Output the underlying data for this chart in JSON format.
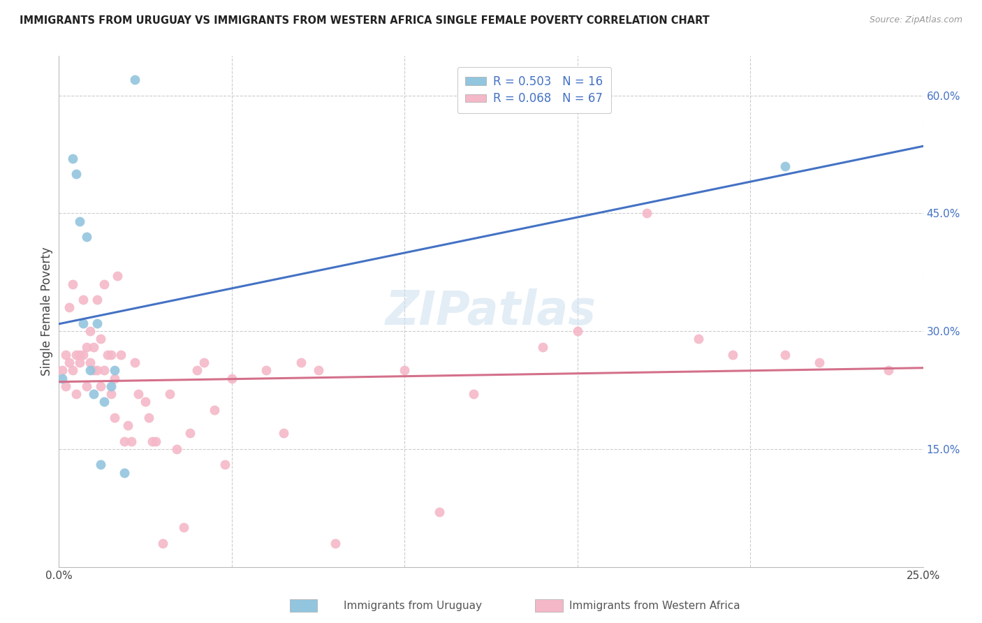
{
  "title": "IMMIGRANTS FROM URUGUAY VS IMMIGRANTS FROM WESTERN AFRICA SINGLE FEMALE POVERTY CORRELATION CHART",
  "source": "Source: ZipAtlas.com",
  "ylabel": "Single Female Poverty",
  "xmin": 0.0,
  "xmax": 0.25,
  "ymin": 0.0,
  "ymax": 0.65,
  "watermark": "ZIPatlas",
  "legend1_label": "R = 0.503   N = 16",
  "legend2_label": "R = 0.068   N = 67",
  "legend_xlabel1": "Immigrants from Uruguay",
  "legend_xlabel2": "Immigrants from Western Africa",
  "blue_color": "#92c5de",
  "pink_color": "#f4b8c8",
  "line_blue": "#4472c4",
  "line_pink": "#d4708a",
  "uruguay_x": [
    0.001,
    0.004,
    0.005,
    0.006,
    0.007,
    0.008,
    0.009,
    0.01,
    0.011,
    0.012,
    0.013,
    0.015,
    0.016,
    0.019,
    0.022,
    0.21
  ],
  "uruguay_y": [
    0.24,
    0.52,
    0.5,
    0.44,
    0.31,
    0.42,
    0.25,
    0.22,
    0.31,
    0.13,
    0.21,
    0.23,
    0.25,
    0.12,
    0.62,
    0.51
  ],
  "wa_x": [
    0.001,
    0.002,
    0.002,
    0.003,
    0.003,
    0.004,
    0.004,
    0.005,
    0.005,
    0.006,
    0.006,
    0.007,
    0.007,
    0.008,
    0.008,
    0.009,
    0.009,
    0.01,
    0.01,
    0.011,
    0.011,
    0.012,
    0.012,
    0.013,
    0.013,
    0.014,
    0.015,
    0.015,
    0.016,
    0.016,
    0.017,
    0.018,
    0.019,
    0.02,
    0.021,
    0.022,
    0.023,
    0.025,
    0.026,
    0.027,
    0.028,
    0.03,
    0.032,
    0.034,
    0.036,
    0.038,
    0.04,
    0.042,
    0.045,
    0.048,
    0.05,
    0.06,
    0.065,
    0.07,
    0.075,
    0.08,
    0.1,
    0.11,
    0.12,
    0.14,
    0.15,
    0.17,
    0.185,
    0.195,
    0.21,
    0.22,
    0.24
  ],
  "wa_y": [
    0.25,
    0.23,
    0.27,
    0.26,
    0.33,
    0.25,
    0.36,
    0.22,
    0.27,
    0.26,
    0.27,
    0.34,
    0.27,
    0.28,
    0.23,
    0.3,
    0.26,
    0.25,
    0.28,
    0.34,
    0.25,
    0.23,
    0.29,
    0.25,
    0.36,
    0.27,
    0.27,
    0.22,
    0.19,
    0.24,
    0.37,
    0.27,
    0.16,
    0.18,
    0.16,
    0.26,
    0.22,
    0.21,
    0.19,
    0.16,
    0.16,
    0.03,
    0.22,
    0.15,
    0.05,
    0.17,
    0.25,
    0.26,
    0.2,
    0.13,
    0.24,
    0.25,
    0.17,
    0.26,
    0.25,
    0.03,
    0.25,
    0.07,
    0.22,
    0.28,
    0.3,
    0.45,
    0.29,
    0.27,
    0.27,
    0.26,
    0.25
  ]
}
